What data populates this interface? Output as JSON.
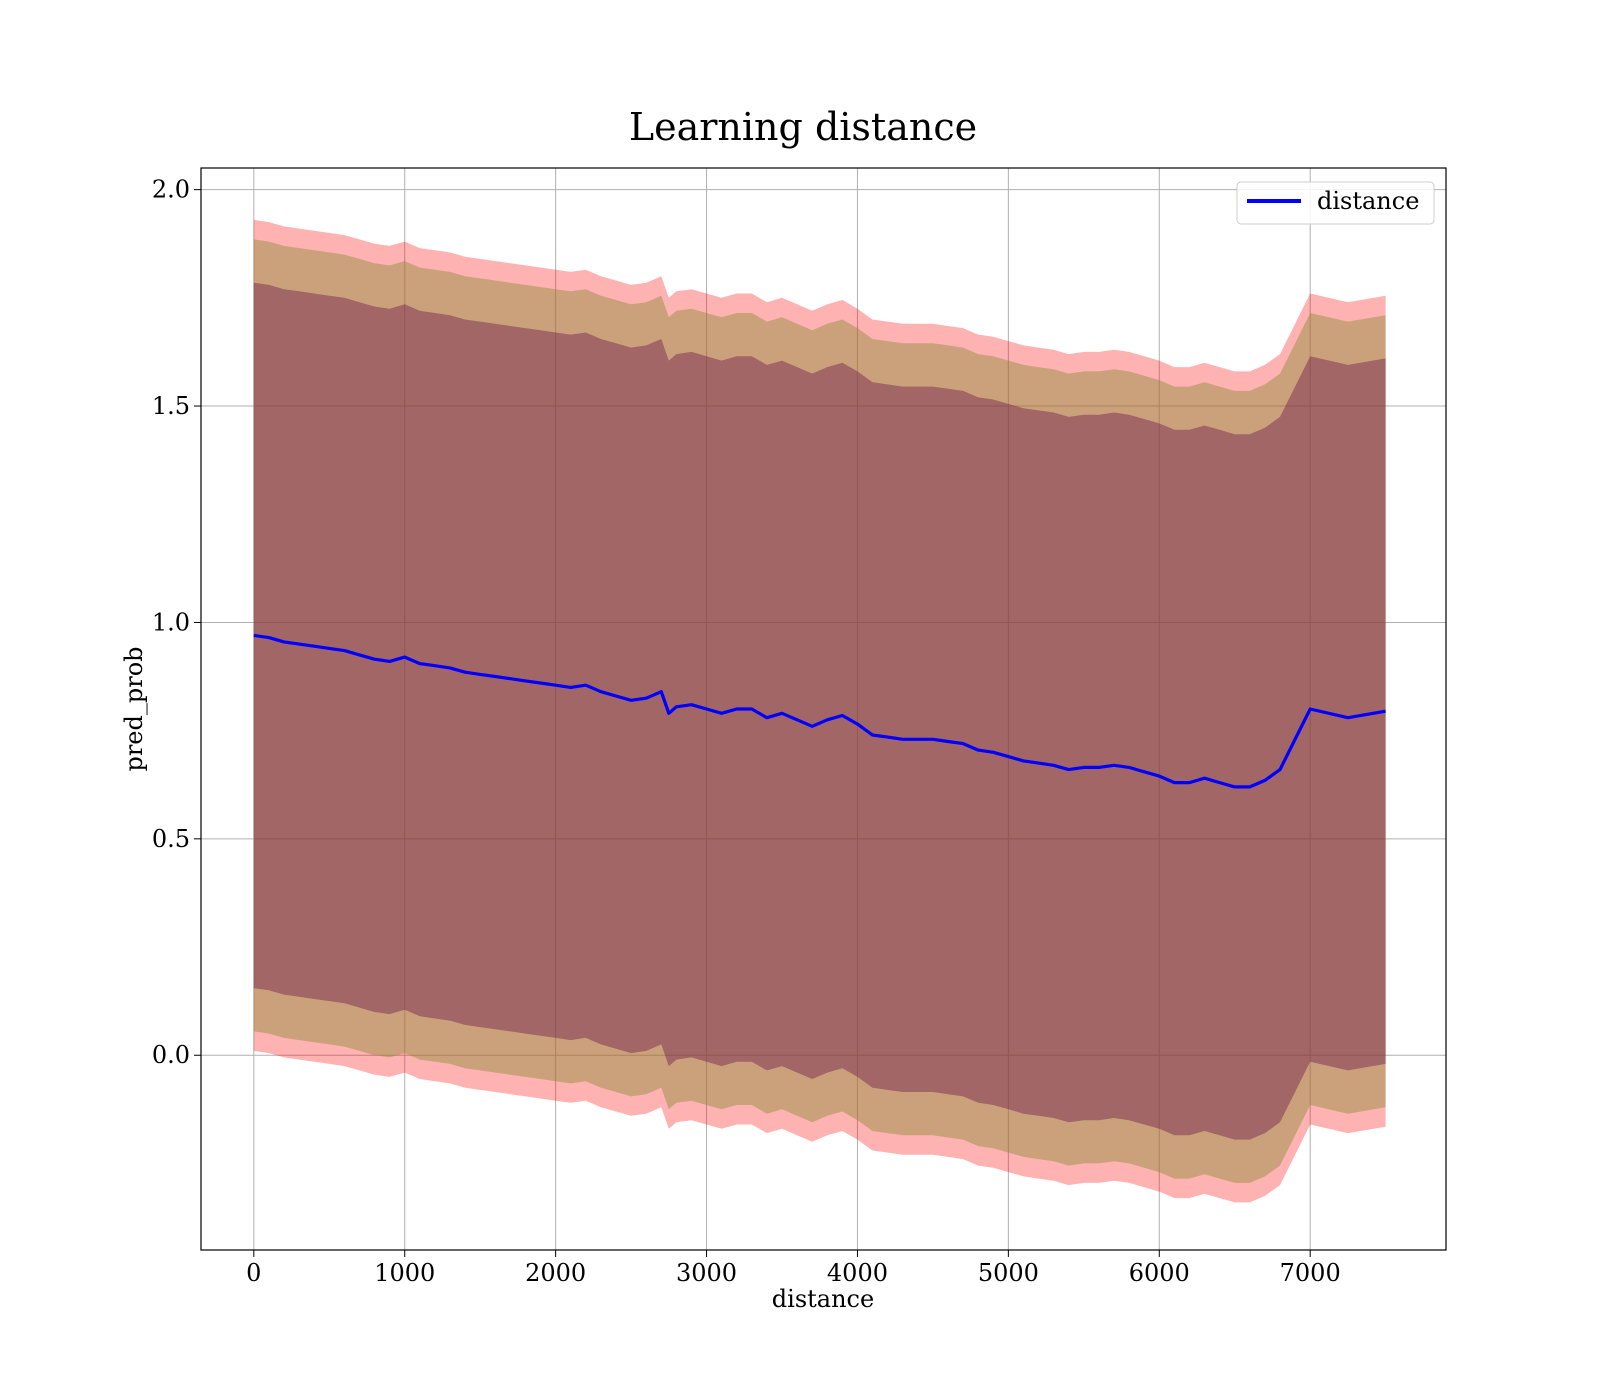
{
  "chart_data": {
    "type": "line",
    "title": "Learning distance",
    "xlabel": "distance",
    "ylabel": "pred_prob",
    "xlim": [
      -350,
      7900
    ],
    "ylim": [
      -0.45,
      2.05
    ],
    "x_ticks": [
      0,
      1000,
      2000,
      3000,
      4000,
      5000,
      6000,
      7000
    ],
    "x_tick_labels": [
      "0",
      "1000",
      "2000",
      "3000",
      "4000",
      "5000",
      "6000",
      "7000"
    ],
    "y_ticks": [
      0.0,
      0.5,
      1.0,
      1.5,
      2.0
    ],
    "y_tick_labels": [
      "0.0",
      "0.5",
      "1.0",
      "1.5",
      "2.0"
    ],
    "grid": true,
    "legend_position": "top-right",
    "colors": {
      "line": "#0000ff",
      "band_outer": "#ff0000",
      "band_middle": "#8b8b3a",
      "band_inner": "#6e1f4a",
      "grid": "#b0b0b0"
    },
    "series": [
      {
        "name": "distance",
        "x": [
          0,
          100,
          200,
          300,
          400,
          500,
          600,
          700,
          800,
          900,
          1000,
          1100,
          1200,
          1300,
          1400,
          1500,
          1600,
          1700,
          1800,
          1900,
          2000,
          2100,
          2200,
          2300,
          2400,
          2500,
          2600,
          2700,
          2750,
          2800,
          2900,
          3000,
          3100,
          3200,
          3300,
          3400,
          3500,
          3600,
          3700,
          3800,
          3900,
          4000,
          4100,
          4200,
          4300,
          4400,
          4500,
          4600,
          4700,
          4800,
          4900,
          5000,
          5100,
          5200,
          5300,
          5400,
          5500,
          5600,
          5700,
          5800,
          5900,
          6000,
          6100,
          6200,
          6300,
          6400,
          6500,
          6600,
          6700,
          6800,
          7000,
          7250,
          7500
        ],
        "y": [
          0.97,
          0.965,
          0.955,
          0.95,
          0.945,
          0.94,
          0.935,
          0.925,
          0.915,
          0.91,
          0.92,
          0.905,
          0.9,
          0.895,
          0.885,
          0.88,
          0.875,
          0.87,
          0.865,
          0.86,
          0.855,
          0.85,
          0.855,
          0.84,
          0.83,
          0.82,
          0.825,
          0.84,
          0.79,
          0.805,
          0.81,
          0.8,
          0.79,
          0.8,
          0.8,
          0.78,
          0.79,
          0.775,
          0.76,
          0.775,
          0.785,
          0.765,
          0.74,
          0.735,
          0.73,
          0.73,
          0.73,
          0.725,
          0.72,
          0.705,
          0.7,
          0.69,
          0.68,
          0.675,
          0.67,
          0.66,
          0.665,
          0.665,
          0.67,
          0.665,
          0.655,
          0.645,
          0.63,
          0.63,
          0.64,
          0.63,
          0.62,
          0.62,
          0.635,
          0.66,
          0.8,
          0.78,
          0.795
        ],
        "bands": [
          {
            "label": "outer",
            "half_width": 0.96
          },
          {
            "label": "middle",
            "half_width": 0.915
          },
          {
            "label": "inner",
            "half_width": 0.815
          }
        ]
      }
    ]
  }
}
